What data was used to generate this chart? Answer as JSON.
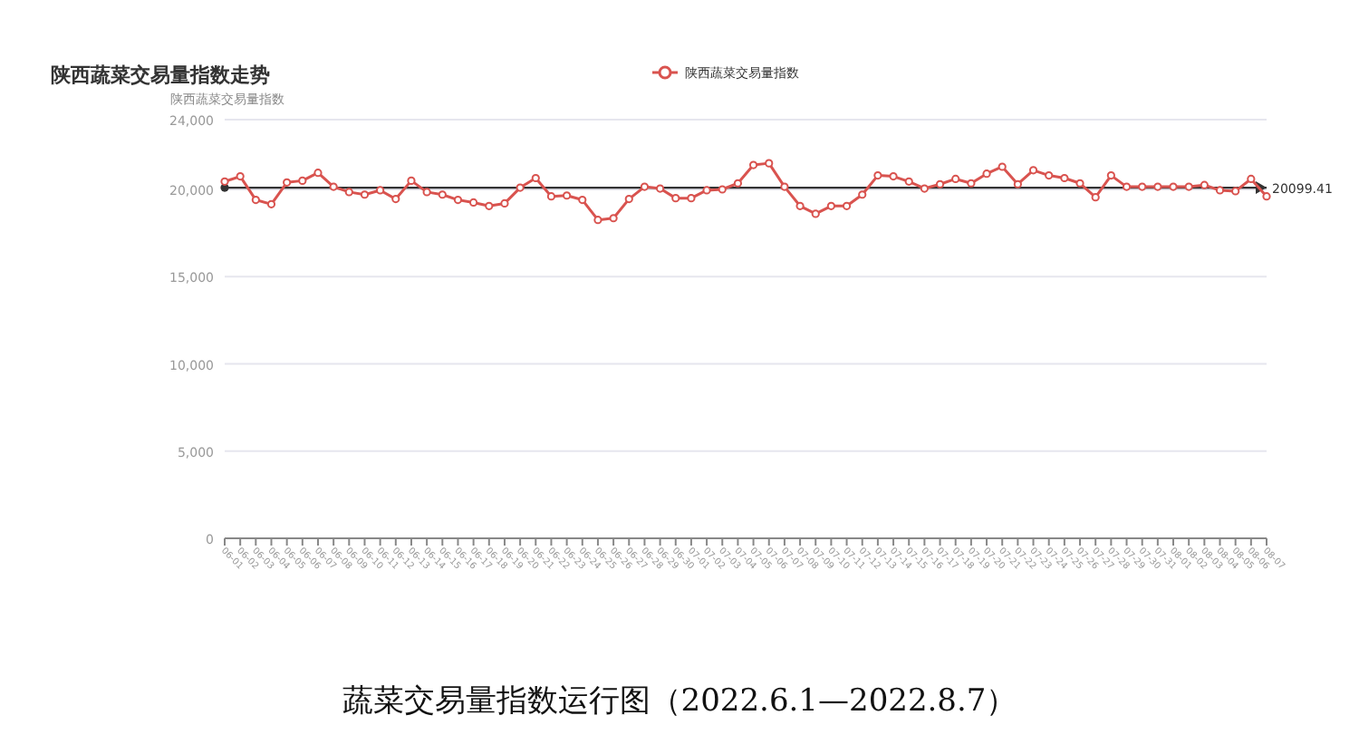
{
  "chart_data": {
    "type": "line",
    "title": "陕西蔬菜交易量指数走势",
    "ylabel": "陕西蔬菜交易量指数",
    "annotations": [
      "蔬菜交易量指数运行图（2022.6.1—2022.8.7）"
    ],
    "categories": [
      "06-01",
      "06-02",
      "06-03",
      "06-04",
      "06-05",
      "06-06",
      "06-07",
      "06-08",
      "06-09",
      "06-10",
      "06-11",
      "06-12",
      "06-13",
      "06-14",
      "06-15",
      "06-16",
      "06-17",
      "06-18",
      "06-19",
      "06-20",
      "06-21",
      "06-22",
      "06-23",
      "06-24",
      "06-25",
      "06-26",
      "06-27",
      "06-28",
      "06-29",
      "06-30",
      "07-01",
      "07-02",
      "07-03",
      "07-04",
      "07-05",
      "07-06",
      "07-07",
      "07-08",
      "07-09",
      "07-10",
      "07-11",
      "07-12",
      "07-13",
      "07-14",
      "07-15",
      "07-16",
      "07-17",
      "07-18",
      "07-19",
      "07-20",
      "07-21",
      "07-22",
      "07-23",
      "07-24",
      "07-25",
      "07-26",
      "07-27",
      "07-28",
      "07-29",
      "07-30",
      "07-31",
      "08-01",
      "08-02",
      "08-03",
      "08-04",
      "08-05",
      "08-06",
      "08-07"
    ],
    "series": [
      {
        "name": "陕西蔬菜交易量指数",
        "color": "#d9534f",
        "values": [
          20450,
          20750,
          19400,
          19150,
          20400,
          20500,
          20950,
          20150,
          19850,
          19700,
          19950,
          19450,
          20500,
          19850,
          19700,
          19400,
          19250,
          19050,
          19200,
          20100,
          20650,
          19600,
          19650,
          19400,
          18250,
          18350,
          19450,
          20150,
          20050,
          19500,
          19500,
          19950,
          20000,
          20350,
          21400,
          21500,
          20150,
          19050,
          18600,
          19050,
          19050,
          19700,
          20800,
          20750,
          20450,
          20050,
          20300,
          20600,
          20350,
          20900,
          21300,
          20300,
          21100,
          20800,
          20650,
          20350,
          19550,
          20800,
          20150,
          20150,
          20150,
          20150,
          20150,
          20250,
          19950,
          19900,
          20600,
          19600
        ]
      }
    ],
    "ylim": [
      0,
      24000
    ],
    "yticks": [
      {
        "value": 0,
        "label": "0"
      },
      {
        "value": 5000,
        "label": "5,000"
      },
      {
        "value": 10000,
        "label": "10,000"
      },
      {
        "value": 15000,
        "label": "15,000"
      },
      {
        "value": 20000,
        "label": "20,000"
      },
      {
        "value": 24000,
        "label": "24,000"
      }
    ],
    "grid": "y",
    "legend": "top",
    "marker": "circle",
    "line_style": "solid",
    "ref_lines": [
      {
        "axis": "y",
        "value": 20099.41,
        "label": "20099.41",
        "color": "#333333"
      }
    ]
  }
}
